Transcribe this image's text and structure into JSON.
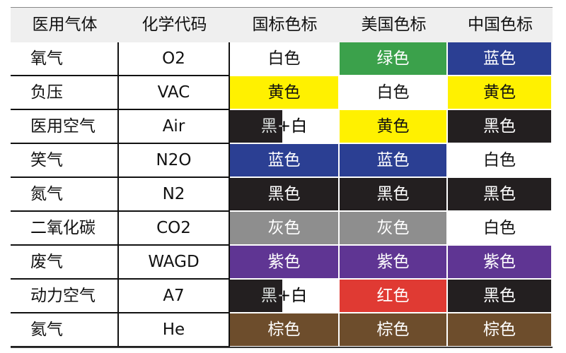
{
  "headers": [
    "医用气体",
    "化学代码",
    "国标色标",
    "美国色标",
    "中国色标"
  ],
  "colors": {
    "white": "#ffffff",
    "green": "#3ba14b",
    "blue": "#2b3f93",
    "yellow": "#fff100",
    "black": "#231f20",
    "gray": "#8e8e8e",
    "purple": "#5f3593",
    "red": "#e03a33",
    "brown": "#6d4d2c"
  },
  "rows": [
    {
      "gas": "氧气",
      "code": "O2",
      "cells": [
        {
          "text": "白色",
          "bg": "white"
        },
        {
          "text": "绿色",
          "bg": "green"
        },
        {
          "text": "蓝色",
          "bg": "blue"
        }
      ]
    },
    {
      "gas": "负压",
      "code": "VAC",
      "cells": [
        {
          "text": "黄色",
          "bg": "yellow"
        },
        {
          "text": "白色",
          "bg": "white"
        },
        {
          "text": "黄色",
          "bg": "yellow"
        }
      ]
    },
    {
      "gas": "医用空气",
      "code": "Air",
      "cells": [
        {
          "text": "黑+白",
          "bg": "split",
          "left": "黑+",
          "right": "白"
        },
        {
          "text": "黄色",
          "bg": "yellow"
        },
        {
          "text": "黑色",
          "bg": "black"
        }
      ]
    },
    {
      "gas": "笑气",
      "code": "N2O",
      "cells": [
        {
          "text": "蓝色",
          "bg": "blue"
        },
        {
          "text": "蓝色",
          "bg": "blue"
        },
        {
          "text": "白色",
          "bg": "white"
        }
      ]
    },
    {
      "gas": "氮气",
      "code": "N2",
      "cells": [
        {
          "text": "黑色",
          "bg": "black"
        },
        {
          "text": "黑色",
          "bg": "black"
        },
        {
          "text": "黑色",
          "bg": "black"
        }
      ]
    },
    {
      "gas": "二氧化碳",
      "code": "CO2",
      "cells": [
        {
          "text": "灰色",
          "bg": "gray"
        },
        {
          "text": "灰色",
          "bg": "gray"
        },
        {
          "text": "白色",
          "bg": "white"
        }
      ]
    },
    {
      "gas": "废气",
      "code": "WAGD",
      "cells": [
        {
          "text": "紫色",
          "bg": "purple"
        },
        {
          "text": "紫色",
          "bg": "purple"
        },
        {
          "text": "紫色",
          "bg": "purple"
        }
      ]
    },
    {
      "gas": "动力空气",
      "code": "A7",
      "cells": [
        {
          "text": "黑+白",
          "bg": "split",
          "left": "黑+",
          "right": "白"
        },
        {
          "text": "红色",
          "bg": "red"
        },
        {
          "text": "黑色",
          "bg": "black"
        }
      ]
    },
    {
      "gas": "氦气",
      "code": "He",
      "cells": [
        {
          "text": "棕色",
          "bg": "brown"
        },
        {
          "text": "棕色",
          "bg": "brown"
        },
        {
          "text": "棕色",
          "bg": "brown"
        }
      ]
    }
  ]
}
